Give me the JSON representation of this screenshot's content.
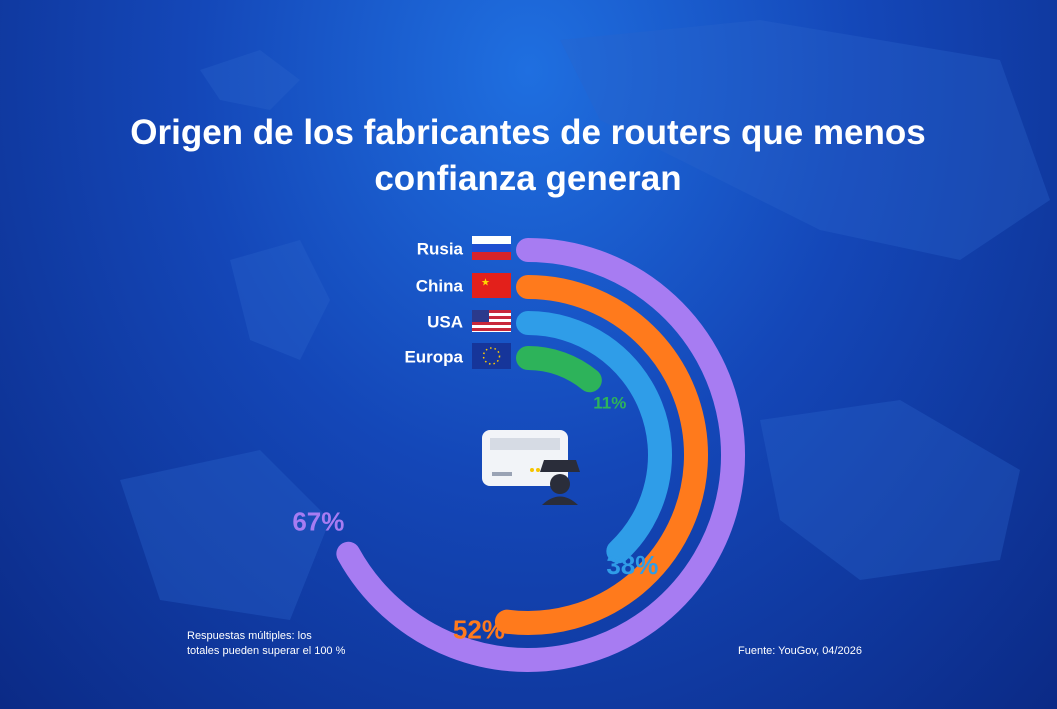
{
  "chart_data": {
    "type": "radial-bar",
    "title": "Origen de los fabricantes de routers que menos confianza generan",
    "categories": [
      "Rusia",
      "China",
      "USA",
      "Europa"
    ],
    "values": [
      67,
      52,
      38,
      11
    ],
    "value_labels": [
      "67%",
      "52%",
      "38%",
      "11%"
    ],
    "colors": [
      "#a77cf2",
      "#ff7a1c",
      "#2f9de8",
      "#2db35a"
    ],
    "ylim": [
      0,
      100
    ],
    "note": [
      "Respuestas múltiples: los",
      "totales pueden superar el 100 %"
    ],
    "source": "Fuente: YouGov, 04/2026"
  }
}
